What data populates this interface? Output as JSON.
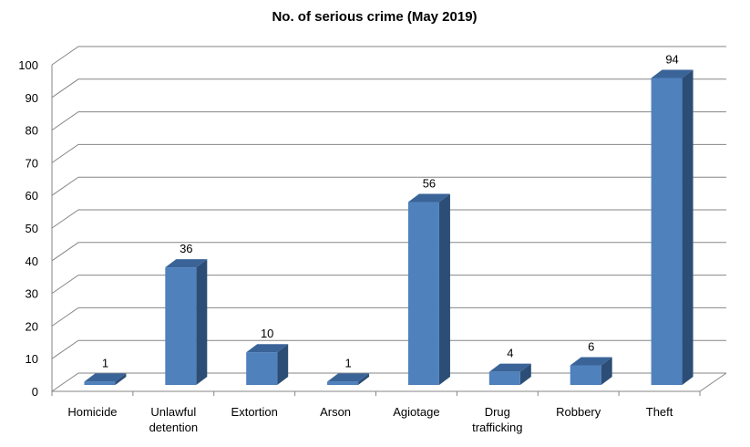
{
  "chart_data": {
    "type": "bar",
    "title": "No. of serious crime (May 2019)",
    "categories": [
      [
        "Homicide"
      ],
      [
        "Unlawful",
        "detention"
      ],
      [
        "Extortion"
      ],
      [
        "Arson"
      ],
      [
        "Agiotage"
      ],
      [
        "Drug",
        "trafficking"
      ],
      [
        "Robbery"
      ],
      [
        "Theft"
      ]
    ],
    "values": [
      1,
      36,
      10,
      1,
      56,
      4,
      6,
      94
    ],
    "ylim": [
      0,
      100
    ],
    "yticks": [
      0,
      10,
      20,
      30,
      40,
      50,
      60,
      70,
      80,
      90,
      100
    ],
    "grid": true,
    "legend": "none",
    "style": "3d-column",
    "colors": {
      "front": "#4F81BD",
      "side": "#2C4D75",
      "top": "#3A6498",
      "grid": "#868686"
    }
  }
}
